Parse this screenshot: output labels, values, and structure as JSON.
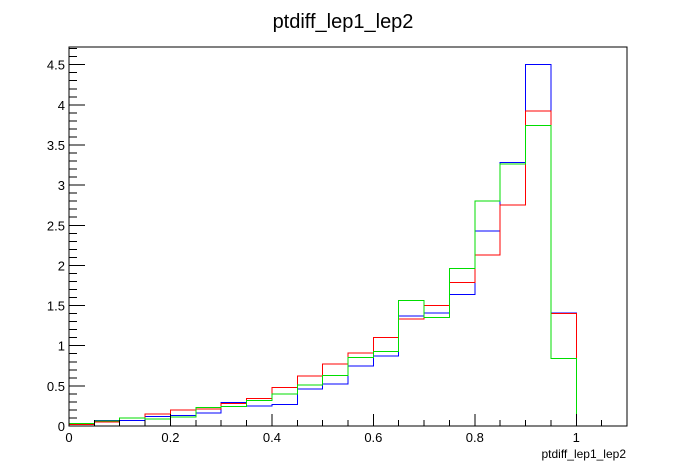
{
  "chart_data": {
    "type": "histogram",
    "title": "ptdiff_lep1_lep2",
    "xlabel": "ptdiff_lep1_lep2",
    "ylabel": "",
    "xlim": [
      0,
      1.1
    ],
    "ylim": [
      0,
      4.72
    ],
    "grid": false,
    "legend": "none",
    "x_ticks": [
      "0",
      "0.2",
      "0.4",
      "0.6",
      "0.8",
      "1"
    ],
    "y_ticks": [
      "0",
      "0.5",
      "1",
      "1.5",
      "2",
      "2.5",
      "3",
      "3.5",
      "4",
      "4.5"
    ],
    "bin_edges": [
      0,
      0.05,
      0.1,
      0.15,
      0.2,
      0.25,
      0.3,
      0.35,
      0.4,
      0.45,
      0.5,
      0.55,
      0.6,
      0.65,
      0.7,
      0.75,
      0.8,
      0.85,
      0.9,
      0.95,
      1.0
    ],
    "series": [
      {
        "color": "#0000ff",
        "values": [
          0.02,
          0.07,
          0.07,
          0.12,
          0.13,
          0.16,
          0.29,
          0.25,
          0.27,
          0.46,
          0.52,
          0.75,
          0.87,
          1.37,
          1.41,
          1.64,
          2.43,
          3.28,
          4.5,
          1.41
        ]
      },
      {
        "color": "#ff0000",
        "values": [
          0.02,
          0.05,
          0.1,
          0.15,
          0.2,
          0.21,
          0.28,
          0.34,
          0.48,
          0.62,
          0.77,
          0.91,
          1.1,
          1.33,
          1.5,
          1.79,
          2.13,
          2.75,
          3.92,
          1.4
        ]
      },
      {
        "color": "#00dd00",
        "values": [
          0.03,
          0.06,
          0.1,
          0.09,
          0.11,
          0.23,
          0.24,
          0.32,
          0.4,
          0.51,
          0.63,
          0.85,
          0.93,
          1.56,
          1.35,
          1.96,
          2.8,
          3.26,
          3.74,
          0.84
        ]
      }
    ]
  }
}
